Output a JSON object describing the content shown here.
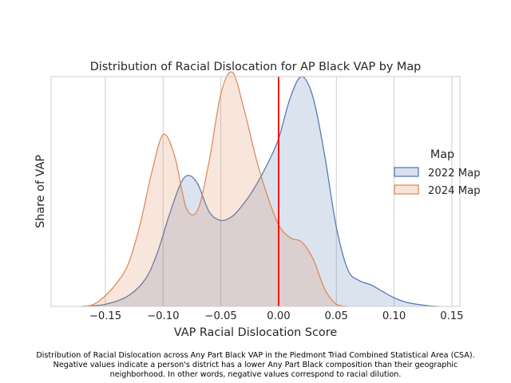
{
  "chart_data": {
    "type": "area",
    "title": "Distribution of Racial Dislocation for AP Black VAP by Map",
    "xlabel": "VAP Racial Dislocation Score",
    "ylabel": "Share of VAP",
    "xlim": [
      -0.197,
      0.157
    ],
    "ylim": [
      0,
      1.07
    ],
    "x_ticks": [
      -0.15,
      -0.1,
      -0.05,
      0.0,
      0.05,
      0.1,
      0.15
    ],
    "x_tick_labels": [
      "−0.15",
      "−0.10",
      "−0.05",
      "0.00",
      "0.05",
      "0.10",
      "0.15"
    ],
    "y_tick_labels": [],
    "grid": "vertical",
    "reference_line": {
      "x": 0.0,
      "color": "#ff0000"
    },
    "legend": {
      "title": "Map",
      "placement": "right"
    },
    "series": [
      {
        "name": "2022 Map",
        "color": "#4c72b0",
        "x": [
          -0.17,
          -0.15,
          -0.13,
          -0.115,
          -0.105,
          -0.095,
          -0.085,
          -0.078,
          -0.07,
          -0.06,
          -0.05,
          -0.04,
          -0.03,
          -0.02,
          -0.01,
          0.0,
          0.01,
          0.02,
          0.03,
          0.04,
          0.05,
          0.06,
          0.07,
          0.08,
          0.09,
          0.1,
          0.11,
          0.12,
          0.13,
          0.14
        ],
        "y": [
          0.0,
          0.01,
          0.05,
          0.13,
          0.25,
          0.42,
          0.57,
          0.61,
          0.57,
          0.44,
          0.4,
          0.42,
          0.48,
          0.56,
          0.66,
          0.78,
          0.97,
          1.07,
          0.97,
          0.7,
          0.37,
          0.17,
          0.12,
          0.1,
          0.07,
          0.04,
          0.02,
          0.01,
          0.003,
          0.0
        ]
      },
      {
        "name": "2024 Map",
        "color": "#dd8452",
        "x": [
          -0.17,
          -0.16,
          -0.15,
          -0.14,
          -0.13,
          -0.12,
          -0.11,
          -0.1,
          -0.09,
          -0.08,
          -0.07,
          -0.06,
          -0.05,
          -0.04,
          -0.03,
          -0.02,
          -0.01,
          0.0,
          0.01,
          0.02,
          0.03,
          0.04,
          0.05,
          0.06
        ],
        "y": [
          0.0,
          0.01,
          0.05,
          0.11,
          0.2,
          0.38,
          0.62,
          0.8,
          0.7,
          0.46,
          0.45,
          0.68,
          0.99,
          1.09,
          0.92,
          0.7,
          0.52,
          0.38,
          0.32,
          0.3,
          0.22,
          0.08,
          0.01,
          0.0
        ]
      }
    ]
  },
  "caption": {
    "line1": "Distribution of Racial Dislocation across Any Part Black VAP in the Piedmont Triad Combined Statistical Area (CSA).",
    "line2": "Negative values indicate a person's district has a lower Any Part Black composition than their geographic",
    "line3": "neighborhood. In other words, negative values correspond to racial dilution."
  }
}
